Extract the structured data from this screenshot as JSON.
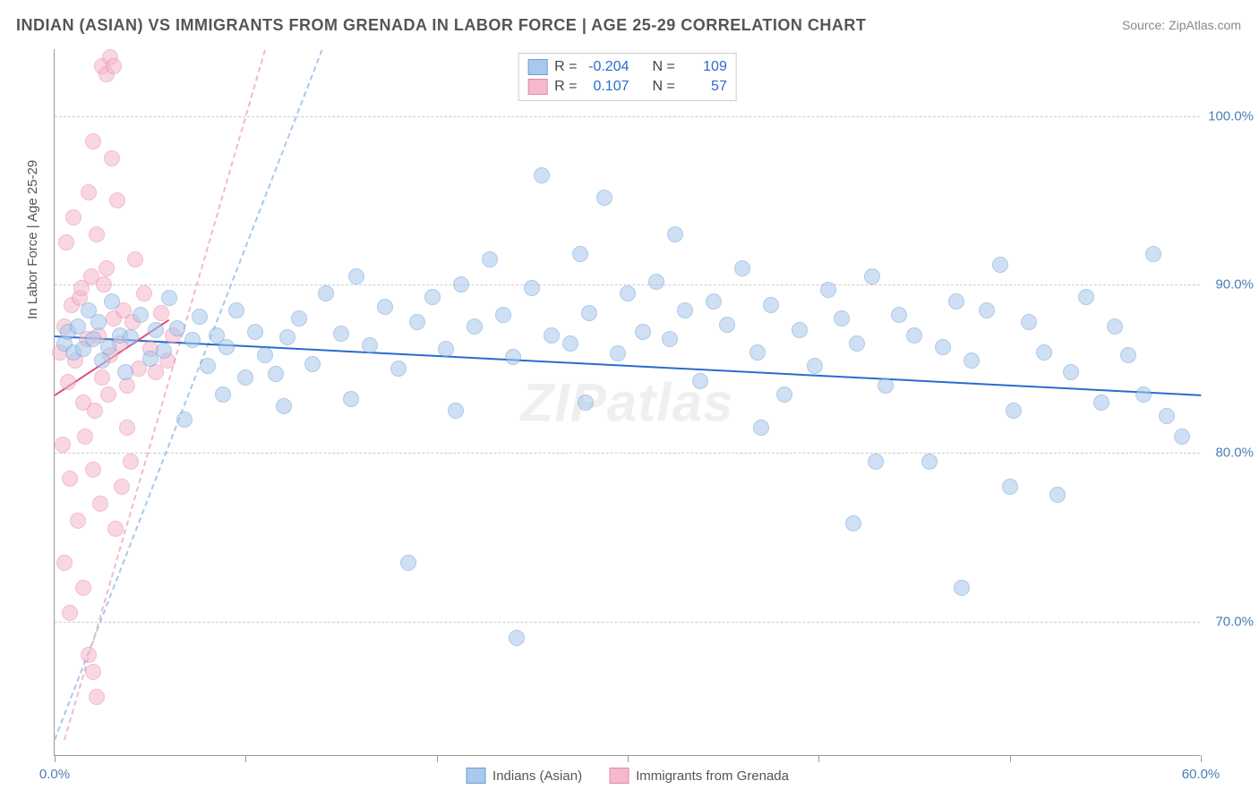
{
  "title": "INDIAN (ASIAN) VS IMMIGRANTS FROM GRENADA IN LABOR FORCE | AGE 25-29 CORRELATION CHART",
  "source": "Source: ZipAtlas.com",
  "ylabel": "In Labor Force | Age 25-29",
  "watermark": "ZIPatlas",
  "chart": {
    "type": "scatter",
    "xlim": [
      0,
      60
    ],
    "ylim": [
      62,
      104
    ],
    "xtick_positions": [
      0,
      10,
      20,
      30,
      40,
      50,
      60
    ],
    "xtick_labels": {
      "0": "0.0%",
      "60": "60.0%"
    },
    "ytick_values": [
      70,
      80,
      90,
      100
    ],
    "ytick_labels": [
      "70.0%",
      "80.0%",
      "90.0%",
      "100.0%"
    ],
    "background_color": "#ffffff",
    "grid_color": "#cccccc",
    "axis_label_color": "#4a7fb5",
    "marker_radius": 9,
    "marker_opacity": 0.55
  },
  "series": [
    {
      "name": "Indians (Asian)",
      "color_fill": "#a8c8ec",
      "color_stroke": "#6c9fd6",
      "R": "-0.204",
      "N": "109",
      "trend": {
        "x1": 0,
        "y1": 87.0,
        "x2": 60,
        "y2": 83.5,
        "color": "#2a6bcc",
        "dashed": false
      },
      "diag": {
        "x1": 0,
        "y1": 63,
        "x2": 14,
        "y2": 104,
        "color": "#a8c8ec"
      },
      "points": [
        [
          0.5,
          86.5
        ],
        [
          0.7,
          87.2
        ],
        [
          1.0,
          86.0
        ],
        [
          1.2,
          87.5
        ],
        [
          1.5,
          86.2
        ],
        [
          1.8,
          88.5
        ],
        [
          2.0,
          86.8
        ],
        [
          2.3,
          87.8
        ],
        [
          2.5,
          85.5
        ],
        [
          2.8,
          86.3
        ],
        [
          3.0,
          89.0
        ],
        [
          3.4,
          87.0
        ],
        [
          3.7,
          84.8
        ],
        [
          4.0,
          86.9
        ],
        [
          4.5,
          88.2
        ],
        [
          5.0,
          85.6
        ],
        [
          5.3,
          87.3
        ],
        [
          5.7,
          86.1
        ],
        [
          6.0,
          89.2
        ],
        [
          6.4,
          87.4
        ],
        [
          6.8,
          82.0
        ],
        [
          7.2,
          86.7
        ],
        [
          7.6,
          88.1
        ],
        [
          8.0,
          85.2
        ],
        [
          8.5,
          87.0
        ],
        [
          9.0,
          86.3
        ],
        [
          9.5,
          88.5
        ],
        [
          10.0,
          84.5
        ],
        [
          10.5,
          87.2
        ],
        [
          11.0,
          85.8
        ],
        [
          11.6,
          84.7
        ],
        [
          12.2,
          86.9
        ],
        [
          12.8,
          88.0
        ],
        [
          13.5,
          85.3
        ],
        [
          14.2,
          89.5
        ],
        [
          15.0,
          87.1
        ],
        [
          15.8,
          90.5
        ],
        [
          16.5,
          86.4
        ],
        [
          17.3,
          88.7
        ],
        [
          18.0,
          85.0
        ],
        [
          18.5,
          73.5
        ],
        [
          19.0,
          87.8
        ],
        [
          19.8,
          89.3
        ],
        [
          20.5,
          86.2
        ],
        [
          21.3,
          90.0
        ],
        [
          22.0,
          87.5
        ],
        [
          22.8,
          91.5
        ],
        [
          23.5,
          88.2
        ],
        [
          24.0,
          85.7
        ],
        [
          24.2,
          69.0
        ],
        [
          25.0,
          89.8
        ],
        [
          25.5,
          96.5
        ],
        [
          26.0,
          87.0
        ],
        [
          27.0,
          86.5
        ],
        [
          27.5,
          91.8
        ],
        [
          28.0,
          88.3
        ],
        [
          28.8,
          95.2
        ],
        [
          29.5,
          85.9
        ],
        [
          30.0,
          89.5
        ],
        [
          30.8,
          87.2
        ],
        [
          31.5,
          90.2
        ],
        [
          32.2,
          86.8
        ],
        [
          33.0,
          88.5
        ],
        [
          33.8,
          84.3
        ],
        [
          34.5,
          89.0
        ],
        [
          35.2,
          87.6
        ],
        [
          36.0,
          91.0
        ],
        [
          36.8,
          86.0
        ],
        [
          37.5,
          88.8
        ],
        [
          38.2,
          83.5
        ],
        [
          39.0,
          87.3
        ],
        [
          39.8,
          85.2
        ],
        [
          40.5,
          89.7
        ],
        [
          41.2,
          88.0
        ],
        [
          41.8,
          75.8
        ],
        [
          42.0,
          86.5
        ],
        [
          42.8,
          90.5
        ],
        [
          43.5,
          84.0
        ],
        [
          44.2,
          88.2
        ],
        [
          45.0,
          87.0
        ],
        [
          45.8,
          79.5
        ],
        [
          46.5,
          86.3
        ],
        [
          47.2,
          89.0
        ],
        [
          47.5,
          72.0
        ],
        [
          48.0,
          85.5
        ],
        [
          48.8,
          88.5
        ],
        [
          49.5,
          91.2
        ],
        [
          50.2,
          82.5
        ],
        [
          51.0,
          87.8
        ],
        [
          51.8,
          86.0
        ],
        [
          52.5,
          77.5
        ],
        [
          53.2,
          84.8
        ],
        [
          54.0,
          89.3
        ],
        [
          54.8,
          83.0
        ],
        [
          55.5,
          87.5
        ],
        [
          56.2,
          85.8
        ],
        [
          57.0,
          83.5
        ],
        [
          57.5,
          91.8
        ],
        [
          58.2,
          82.2
        ],
        [
          59.0,
          81.0
        ],
        [
          32.5,
          93.0
        ],
        [
          37.0,
          81.5
        ],
        [
          43.0,
          79.5
        ],
        [
          50.0,
          78.0
        ],
        [
          15.5,
          83.2
        ],
        [
          21.0,
          82.5
        ],
        [
          12.0,
          82.8
        ],
        [
          8.8,
          83.5
        ],
        [
          27.8,
          83.0
        ]
      ]
    },
    {
      "name": "Immigrants from Grenada",
      "color_fill": "#f5b8cc",
      "color_stroke": "#e886a8",
      "R": "0.107",
      "N": "57",
      "trend": {
        "x1": 0,
        "y1": 83.5,
        "x2": 6,
        "y2": 88.0,
        "color": "#e04d7e",
        "dashed": false
      },
      "diag": {
        "x1": 0.5,
        "y1": 63,
        "x2": 11,
        "y2": 104,
        "color": "#f5b8cc"
      },
      "points": [
        [
          0.3,
          86.0
        ],
        [
          0.5,
          87.5
        ],
        [
          0.7,
          84.2
        ],
        [
          0.9,
          88.8
        ],
        [
          1.1,
          85.5
        ],
        [
          1.3,
          89.2
        ],
        [
          1.5,
          83.0
        ],
        [
          1.7,
          86.8
        ],
        [
          1.9,
          90.5
        ],
        [
          2.1,
          82.5
        ],
        [
          2.3,
          87.0
        ],
        [
          2.5,
          84.5
        ],
        [
          2.7,
          91.0
        ],
        [
          2.9,
          85.8
        ],
        [
          3.1,
          88.0
        ],
        [
          0.4,
          80.5
        ],
        [
          0.6,
          92.5
        ],
        [
          0.8,
          78.5
        ],
        [
          1.0,
          94.0
        ],
        [
          1.2,
          76.0
        ],
        [
          1.4,
          89.8
        ],
        [
          1.6,
          81.0
        ],
        [
          1.8,
          95.5
        ],
        [
          2.0,
          79.0
        ],
        [
          2.2,
          93.0
        ],
        [
          2.4,
          77.0
        ],
        [
          2.6,
          90.0
        ],
        [
          2.8,
          83.5
        ],
        [
          3.0,
          97.5
        ],
        [
          3.2,
          75.5
        ],
        [
          3.4,
          86.5
        ],
        [
          3.6,
          88.5
        ],
        [
          3.8,
          84.0
        ],
        [
          4.0,
          79.5
        ],
        [
          4.2,
          91.5
        ],
        [
          2.5,
          103.0
        ],
        [
          2.7,
          102.5
        ],
        [
          2.9,
          103.5
        ],
        [
          3.1,
          103.0
        ],
        [
          1.5,
          72.0
        ],
        [
          1.8,
          68.0
        ],
        [
          2.0,
          67.0
        ],
        [
          2.2,
          65.5
        ],
        [
          0.5,
          73.5
        ],
        [
          0.8,
          70.5
        ],
        [
          3.5,
          78.0
        ],
        [
          3.8,
          81.5
        ],
        [
          4.1,
          87.8
        ],
        [
          4.4,
          85.0
        ],
        [
          4.7,
          89.5
        ],
        [
          5.0,
          86.2
        ],
        [
          5.3,
          84.8
        ],
        [
          5.6,
          88.3
        ],
        [
          5.9,
          85.5
        ],
        [
          6.2,
          87.0
        ],
        [
          2.0,
          98.5
        ],
        [
          3.3,
          95.0
        ]
      ]
    }
  ],
  "stats_box": {
    "labels": {
      "R": "R =",
      "N": "N ="
    }
  },
  "bottom_legend": [
    {
      "label": "Indians (Asian)",
      "fill": "#a8c8ec",
      "stroke": "#6c9fd6"
    },
    {
      "label": "Immigrants from Grenada",
      "fill": "#f5b8cc",
      "stroke": "#e886a8"
    }
  ]
}
